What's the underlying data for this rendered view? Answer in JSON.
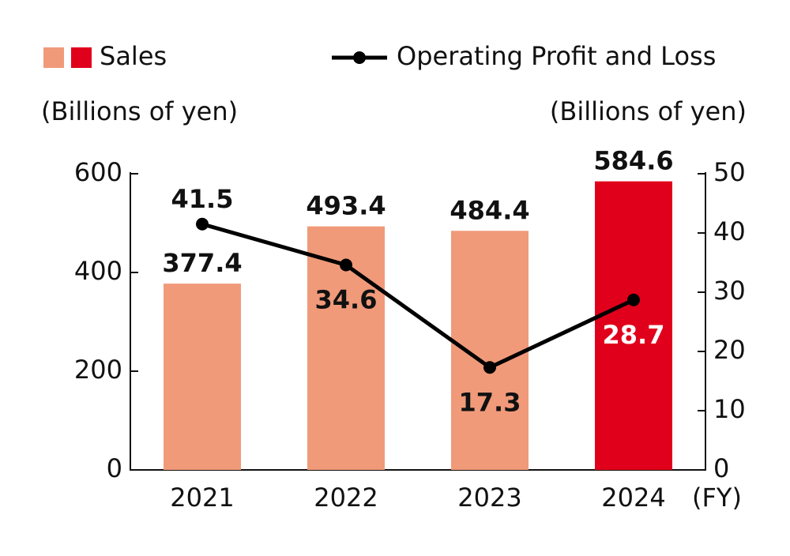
{
  "chart_data": {
    "type": "bar_line",
    "categories": [
      "2021",
      "2022",
      "2023",
      "2024"
    ],
    "x_label": "(FY)",
    "y_label": "(Billions of yen)",
    "y2_label": "(Billions of yen)",
    "series": [
      {
        "name": "Sales",
        "type": "bar",
        "colors": [
          "#f09a7a",
          "#f09a7a",
          "#f09a7a",
          "#e0001b"
        ],
        "values": [
          377.4,
          493.4,
          484.4,
          584.6
        ]
      },
      {
        "name": "Operating Profit and Loss",
        "type": "line",
        "axis": "y2",
        "color": "#000000",
        "values": [
          41.5,
          34.6,
          17.3,
          28.7
        ]
      }
    ],
    "ylim": [
      0,
      600
    ],
    "yticks": [
      0,
      200,
      400,
      600
    ],
    "y2lim": [
      0,
      50
    ],
    "y2ticks": [
      0,
      10,
      20,
      30,
      40,
      50
    ],
    "grid": false
  }
}
